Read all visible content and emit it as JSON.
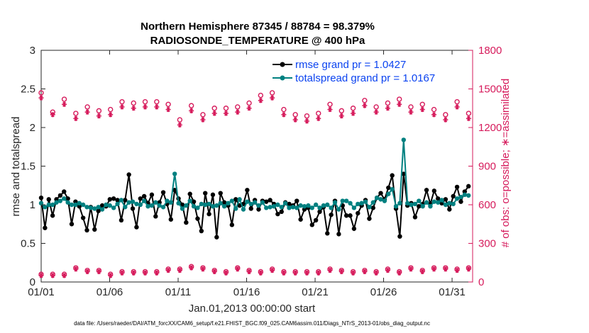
{
  "chart_data": {
    "type": "line",
    "title": "Northern Hemisphere 87345 / 88784 = 98.379%",
    "subtitle": "RADIOSONDE_TEMPERATURE @ 400 hPa",
    "xlabel": "Jan.01,2013 00:00:00 start",
    "ylabel": "rmse and totalspread",
    "ylabel_right": "# of obs: o=possible; ∗=assimilated",
    "xlim": [
      0,
      31.5
    ],
    "ylim": [
      0,
      3
    ],
    "ylim_right": [
      0,
      1800
    ],
    "xticks": [
      0,
      5,
      10,
      15,
      20,
      25,
      30
    ],
    "xtick_labels": [
      "01/01",
      "01/06",
      "01/11",
      "01/16",
      "01/21",
      "01/26",
      "01/31"
    ],
    "yticks": [
      "0",
      "0.5",
      "1",
      "1.5",
      "2",
      "2.5",
      "3"
    ],
    "yticks_right": [
      "0",
      "300",
      "600",
      "900",
      "1200",
      "1500",
      "1800"
    ],
    "footnote": "data file: /Users/raeder/DAI/ATM_forcXX/CAM6_setup/f.e21.FHIST_BGC.f09_025.CAM6assim.011/Diags_NTrS_2013-01/obs_diag_output.nc",
    "series": [
      {
        "name": "rmse grand pr = 1.0427",
        "color": "#000000",
        "values": [
          1.09,
          0.7,
          1.07,
          0.86,
          1.07,
          1.12,
          1.17,
          1.08,
          0.75,
          1.04,
          0.98,
          0.83,
          0.67,
          0.97,
          0.68,
          0.92,
          0.99,
          0.98,
          1.07,
          1.08,
          1.06,
          0.8,
          1.06,
          1.39,
          0.95,
          0.71,
          1.08,
          1.11,
          1.02,
          1.13,
          0.85,
          1.03,
          1.16,
          1.01,
          0.81,
          1.19,
          1.08,
          1.0,
          0.77,
          1.14,
          1.04,
          0.82,
          0.66,
          1.15,
          0.88,
          1.13,
          0.58,
          1.15,
          1.03,
          0.99,
          0.74,
          1.07,
          0.99,
          1.01,
          1.19,
          0.95,
          1.06,
          0.94,
          1.05,
          1.04,
          1.06,
          1.01,
          0.88,
          0.91,
          1.03,
          1.01,
          0.99,
          1.05,
          0.81,
          0.94,
          0.96,
          0.74,
          0.8,
          0.91,
          0.97,
          0.63,
          0.87,
          1.05,
          0.62,
          0.99,
          0.86,
          0.86,
          0.69,
          0.89,
          0.99,
          1.06,
          0.82,
          0.96,
          1.09,
          1.15,
          1.07,
          1.22,
          1.38,
          0.95,
          0.59,
          1.4,
          0.99,
          1.02,
          0.84,
          0.98,
          1.01,
          1.19,
          1.01,
          1.18,
          1.08,
          1.02,
          1.07,
          0.94,
          1.11,
          1.23,
          1.04,
          1.17,
          1.24
        ],
        "marker": "o"
      },
      {
        "name": "totalspread grand pr = 1.0167",
        "color": "#008080",
        "values": [
          1.02,
          0.97,
          1.0,
          1.0,
          1.03,
          1.05,
          1.08,
          1.03,
          1.0,
          1.0,
          1.02,
          1.0,
          0.97,
          0.96,
          0.95,
          0.97,
          0.94,
          1.0,
          0.99,
          0.96,
          1.01,
          1.06,
          0.97,
          1.03,
          1.04,
          1.01,
          1.0,
          1.05,
          0.98,
          0.99,
          1.03,
          0.99,
          0.97,
          1.05,
          1.03,
          1.4,
          1.02,
          0.95,
          0.99,
          1.05,
          0.98,
          0.96,
          1.01,
          1.0,
          1.01,
          0.98,
          0.99,
          1.02,
          0.98,
          1.02,
          1.05,
          0.95,
          1.07,
          0.94,
          1.04,
          1.01,
          1.03,
          0.99,
          1.03,
          0.96,
          0.97,
          0.98,
          1.0,
          0.97,
          1.02,
          0.96,
          0.97,
          0.96,
          0.99,
          0.98,
          0.99,
          0.96,
          1.0,
          0.96,
          0.99,
          1.0,
          0.96,
          1.03,
          0.94,
          1.05,
          1.05,
          1.02,
          0.96,
          1.01,
          1.02,
          1.04,
          0.97,
          1.03,
          1.09,
          1.07,
          1.05,
          1.14,
          1.2,
          0.98,
          1.02,
          1.84,
          1.02,
          1.0,
          1.01,
          1.05,
          0.98,
          1.03,
          0.98,
          1.04,
          1.03,
          1.06,
          1.0,
          1.02,
          1.01,
          1.08,
          1.1,
          1.13,
          1.12
        ],
        "marker": "o"
      }
    ],
    "obs_counts": {
      "color": "#d61a5b",
      "possible": [
        1470,
        1340,
        1320,
        1320,
        1340,
        1380,
        1420,
        1340,
        1340,
        1310,
        1320,
        1360,
        1360,
        1330,
        1350,
        1330,
        1360,
        1380,
        1340,
        1450,
        1470,
        1400,
        1420,
        1340,
        1390,
        1410,
        1390,
        1400,
        1400,
        1350,
        1400,
        1410,
        1400,
        1380,
        1350,
        1340,
        1260,
        1270,
        1370,
        1370,
        1340,
        1300,
        1300,
        1340,
        1390,
        1350,
        1390,
        1350,
        1350,
        1370,
        1350,
        1360,
        1370,
        1390,
        1390,
        1360,
        1390,
        1450,
        1440,
        1470,
        1470,
        1360,
        1350,
        1340,
        1310,
        1310,
        1300,
        1290,
        1300,
        1290,
        1290,
        1290,
        1310,
        1340,
        1360,
        1380,
        1370,
        1370,
        1330,
        1360,
        1370,
        1350,
        1450,
        1460,
        1410,
        1370,
        1360,
        1360,
        1360,
        1380,
        1390,
        1430,
        1400,
        1420,
        1450,
        1430,
        1360,
        1380,
        1370,
        1380,
        1370,
        1420,
        1340,
        1380,
        1300,
        1300,
        1320,
        1410,
        1400,
        1390,
        1360,
        1310,
        1300
      ],
      "assimilated": [
        1430,
        1300,
        1280,
        1300,
        1300,
        1340,
        1380,
        1300,
        1300,
        1270,
        1280,
        1320,
        1320,
        1290,
        1310,
        1290,
        1320,
        1340,
        1300,
        1410,
        1430,
        1360,
        1380,
        1300,
        1350,
        1370,
        1350,
        1360,
        1360,
        1310,
        1360,
        1370,
        1360,
        1340,
        1310,
        1300,
        1220,
        1230,
        1330,
        1330,
        1300,
        1260,
        1260,
        1300,
        1350,
        1310,
        1350,
        1310,
        1310,
        1330,
        1310,
        1320,
        1330,
        1350,
        1350,
        1320,
        1350,
        1410,
        1400,
        1430,
        1430,
        1320,
        1310,
        1300,
        1270,
        1270,
        1260,
        1250,
        1260,
        1250,
        1250,
        1250,
        1270,
        1300,
        1320,
        1340,
        1330,
        1330,
        1290,
        1320,
        1330,
        1310,
        1410,
        1420,
        1370,
        1330,
        1320,
        1320,
        1320,
        1340,
        1350,
        1390,
        1360,
        1380,
        1410,
        1390,
        1320,
        1340,
        1330,
        1340,
        1330,
        1380,
        1300,
        1340,
        1260,
        1260,
        1280,
        1370,
        1360,
        1350,
        1320,
        1270,
        1260
      ],
      "rejected_possible": [
        60,
        70,
        60,
        60,
        80,
        100,
        60,
        50,
        80,
        110,
        100,
        90,
        90,
        80,
        80,
        90,
        70,
        70,
        60,
        60,
        90,
        80,
        70,
        90,
        80,
        60,
        60,
        80,
        90,
        100,
        80,
        80,
        80,
        100,
        90,
        90,
        100,
        100,
        110,
        120,
        110,
        100,
        110,
        120,
        90,
        90,
        90,
        80,
        80,
        90,
        110,
        110,
        100,
        90,
        90,
        90,
        80,
        80,
        110,
        110,
        100,
        100,
        90,
        80,
        70,
        80,
        80,
        80,
        90,
        80,
        80,
        90,
        80,
        90,
        80,
        100,
        100,
        90,
        90,
        100,
        80,
        80,
        70,
        70,
        90,
        80,
        90,
        80,
        100,
        100,
        100,
        90,
        80,
        80,
        90,
        100,
        110,
        100,
        90,
        90,
        110,
        110,
        110,
        100,
        100,
        110,
        110,
        110,
        100,
        110,
        100,
        110,
        100
      ],
      "rejected_assimilated": [
        50,
        60,
        50,
        50,
        70,
        90,
        50,
        40,
        70,
        100,
        90,
        80,
        80,
        70,
        70,
        80,
        60,
        60,
        50,
        50,
        80,
        70,
        60,
        80,
        70,
        50,
        50,
        70,
        80,
        90,
        70,
        70,
        70,
        90,
        80,
        80,
        90,
        90,
        100,
        110,
        100,
        90,
        100,
        110,
        80,
        80,
        80,
        70,
        70,
        80,
        100,
        100,
        90,
        80,
        80,
        80,
        70,
        70,
        100,
        100,
        90,
        90,
        80,
        70,
        60,
        70,
        70,
        70,
        80,
        70,
        70,
        80,
        70,
        80,
        70,
        90,
        90,
        80,
        80,
        90,
        70,
        70,
        60,
        60,
        80,
        70,
        80,
        70,
        90,
        90,
        90,
        80,
        70,
        70,
        80,
        90,
        100,
        90,
        80,
        80,
        100,
        100,
        100,
        90,
        90,
        100,
        100,
        100,
        90,
        100,
        90,
        100,
        90
      ]
    }
  }
}
